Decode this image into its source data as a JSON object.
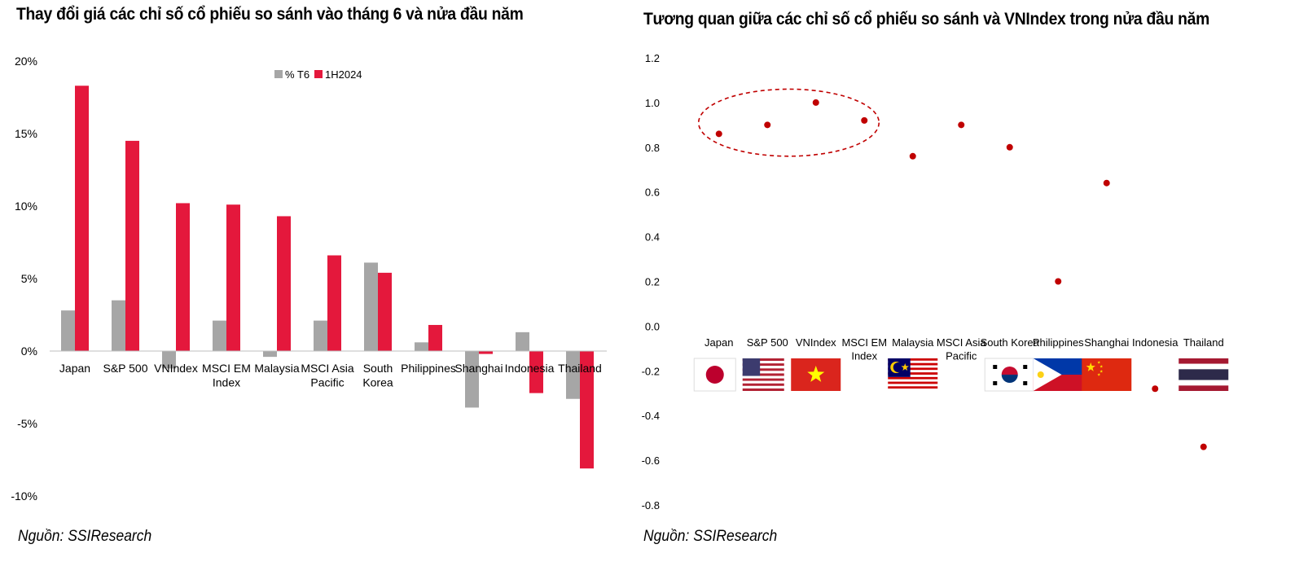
{
  "colors": {
    "t6": "#A6A6A6",
    "h1": "#E4183C",
    "dot": "#C00000"
  },
  "chart_data": [
    {
      "type": "bar",
      "title": "Thay đổi giá các chỉ số cổ phiếu so sánh vào tháng 6 và nửa đầu năm",
      "source": "Nguồn: SSIResearch",
      "categories": [
        "Japan",
        "S&P 500",
        "VNIndex",
        "MSCI EM\nIndex",
        "Malaysia",
        "MSCI Asia\nPacific",
        "South\nKorea",
        "Philippines",
        "Shanghai",
        "Indonesia",
        "Thailand"
      ],
      "series": [
        {
          "name": "% T6",
          "values": [
            2.8,
            3.5,
            -1.2,
            2.1,
            -0.4,
            2.1,
            6.1,
            0.6,
            -3.9,
            1.3,
            -3.3
          ]
        },
        {
          "name": "1H2024",
          "values": [
            18.3,
            14.5,
            10.2,
            10.1,
            9.3,
            6.6,
            5.4,
            1.8,
            -0.2,
            -2.9,
            -8.1
          ]
        }
      ],
      "ylim": [
        -10,
        20
      ],
      "yticks": [
        -10,
        -5,
        0,
        5,
        10,
        15,
        20
      ],
      "ytick_labels": [
        "-10%",
        "-5%",
        "0%",
        "5%",
        "10%",
        "15%",
        "20%"
      ],
      "legend": "top-center"
    },
    {
      "type": "scatter",
      "title": "Tương quan giữa các chỉ số cổ phiếu so sánh và VNIndex trong nửa đầu năm",
      "source": "Nguồn: SSIResearch",
      "categories": [
        "Japan",
        "S&P 500",
        "VNIndex",
        "MSCI EM\nIndex",
        "Malaysia",
        "MSCI Asia\nPacific",
        "South Korea",
        "Philippines",
        "Shanghai",
        "Indonesia",
        "Thailand"
      ],
      "values": [
        0.86,
        0.9,
        1.0,
        0.92,
        0.76,
        0.9,
        0.8,
        0.2,
        0.64,
        -0.28,
        -0.54
      ],
      "ylim": [
        -0.8,
        1.2
      ],
      "yticks": [
        -0.8,
        -0.6,
        -0.4,
        -0.2,
        0.0,
        0.2,
        0.4,
        0.6,
        0.8,
        1.0,
        1.2
      ],
      "ytick_labels": [
        "-0.8",
        "-0.6",
        "-0.4",
        "-0.2",
        "0.0",
        "0.2",
        "0.4",
        "0.6",
        "0.8",
        "1.0",
        "1.2"
      ],
      "flags": [
        "japan-flag",
        "usa-flag",
        "vietnam-flag",
        "",
        "malaysia-flag",
        "",
        "south-korea-flag",
        "philippines-flag",
        "china-flag",
        "",
        "thailand-flag"
      ],
      "highlight": [
        "Japan",
        "S&P 500",
        "VNIndex",
        "MSCI EM\nIndex"
      ]
    }
  ]
}
